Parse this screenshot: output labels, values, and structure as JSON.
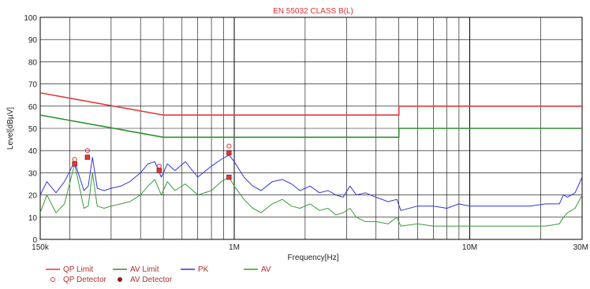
{
  "chart_data": {
    "type": "line",
    "title": "EN 55032 CLASS B(L)",
    "xlabel": "Frequency[Hz]",
    "ylabel": "Level[dBµV]",
    "xscale": "log",
    "xlim": [
      150000,
      30000000
    ],
    "ylim": [
      0,
      100
    ],
    "yticks": [
      0,
      10,
      20,
      30,
      40,
      50,
      60,
      70,
      80,
      90,
      100
    ],
    "xtick_labels": [
      {
        "value": 150000,
        "label": "150k"
      },
      {
        "value": 1000000,
        "label": "1M"
      },
      {
        "value": 10000000,
        "label": "10M"
      },
      {
        "value": 30000000,
        "label": "30M"
      }
    ],
    "grid": true,
    "legend_position": "bottom-left",
    "colors": {
      "qp_limit": "#e03a3a",
      "av_limit": "#2f8f2f",
      "pk": "#3434d8",
      "av": "#3a9a3a",
      "qp_detector": "#e03a3a",
      "av_detector": "#8a1c1c"
    },
    "series": [
      {
        "name": "QP Limit",
        "kind": "limit",
        "x": [
          150000,
          500000,
          500000,
          5000000,
          5000000,
          30000000
        ],
        "y": [
          66,
          56,
          56,
          56,
          60,
          60
        ]
      },
      {
        "name": "AV Limit",
        "kind": "limit",
        "x": [
          150000,
          500000,
          500000,
          5000000,
          5000000,
          30000000
        ],
        "y": [
          56,
          46,
          46,
          46,
          50,
          50
        ]
      },
      {
        "name": "PK",
        "kind": "trace",
        "x": [
          150000,
          160000,
          175000,
          190000,
          210000,
          230000,
          240000,
          250000,
          262000,
          280000,
          300000,
          330000,
          360000,
          400000,
          430000,
          460000,
          490000,
          520000,
          560000,
          620000,
          700000,
          800000,
          880000,
          950000,
          1000000,
          1100000,
          1200000,
          1300000,
          1450000,
          1600000,
          1750000,
          1900000,
          2100000,
          2300000,
          2500000,
          2700000,
          2900000,
          3100000,
          3300000,
          3600000,
          4000000,
          4500000,
          4900000,
          5100000,
          6000000,
          7000000,
          8000000,
          9000000,
          10000000,
          12000000,
          15000000,
          18000000,
          21000000,
          24000000,
          25000000,
          26000000,
          28000000,
          30000000
        ],
        "y": [
          20,
          26,
          21,
          26,
          35,
          22,
          24,
          37,
          23,
          22,
          23,
          24,
          26,
          30,
          34,
          35,
          28,
          34,
          31,
          35,
          28,
          33,
          36,
          38,
          35,
          28,
          24,
          22,
          26,
          27,
          25,
          22,
          24,
          21,
          22,
          20,
          19,
          24,
          20,
          21,
          19,
          17,
          18,
          13,
          15,
          15,
          14,
          16,
          15,
          15,
          15,
          15,
          16,
          16,
          20,
          19,
          21,
          28
        ]
      },
      {
        "name": "AV",
        "kind": "trace",
        "x": [
          150000,
          160000,
          175000,
          190000,
          210000,
          230000,
          240000,
          250000,
          262000,
          280000,
          300000,
          330000,
          360000,
          400000,
          430000,
          460000,
          490000,
          520000,
          560000,
          620000,
          700000,
          800000,
          880000,
          950000,
          1000000,
          1100000,
          1200000,
          1300000,
          1450000,
          1600000,
          1750000,
          1900000,
          2100000,
          2300000,
          2500000,
          2700000,
          2900000,
          3100000,
          3300000,
          3600000,
          4000000,
          4500000,
          4900000,
          5100000,
          6000000,
          7000000,
          8000000,
          9000000,
          10000000,
          12000000,
          15000000,
          18000000,
          21000000,
          24000000,
          25000000,
          26000000,
          28000000,
          30000000
        ],
        "y": [
          12,
          20,
          12,
          16,
          34,
          14,
          15,
          30,
          15,
          14,
          15,
          16,
          17,
          20,
          24,
          27,
          20,
          26,
          22,
          25,
          20,
          22,
          26,
          28,
          24,
          18,
          14,
          12,
          16,
          18,
          15,
          14,
          16,
          13,
          14,
          11,
          12,
          14,
          10,
          8,
          8,
          7,
          10,
          6,
          7,
          6,
          6,
          6,
          6,
          6,
          6,
          6,
          6,
          7,
          10,
          12,
          14,
          20
        ]
      },
      {
        "name": "QP Detector",
        "kind": "markers",
        "marker": "circle",
        "x": [
          210000,
          238000,
          480000,
          950000
        ],
        "y": [
          36,
          40,
          33,
          42
        ]
      },
      {
        "name": "AV Detector",
        "kind": "markers",
        "marker": "square",
        "x": [
          210000,
          238000,
          480000,
          950000,
          950000
        ],
        "y": [
          34,
          37,
          31,
          39,
          28
        ]
      }
    ]
  }
}
